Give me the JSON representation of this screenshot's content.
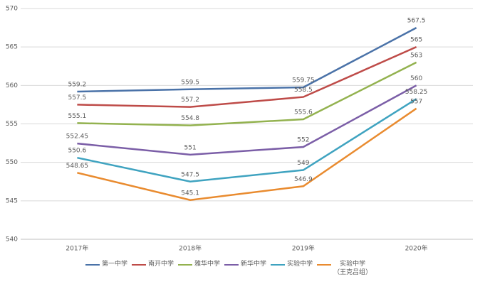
{
  "chart_data": {
    "type": "line",
    "categories": [
      "2017年",
      "2018年",
      "2019年",
      "2020年"
    ],
    "series": [
      {
        "name": "第一中学",
        "color": "#4a72a8",
        "values": [
          559.2,
          559.5,
          559.75,
          567.5
        ]
      },
      {
        "name": "南开中学",
        "color": "#be4b48",
        "values": [
          557.5,
          557.2,
          558.5,
          565
        ]
      },
      {
        "name": "雅华中学",
        "color": "#93b24f",
        "values": [
          555.1,
          554.8,
          555.6,
          563
        ]
      },
      {
        "name": "新华中学",
        "color": "#7b5ea7",
        "values": [
          552.45,
          551,
          552,
          560
        ]
      },
      {
        "name": "实验中学",
        "color": "#3fa3c0",
        "values": [
          550.6,
          547.5,
          549,
          558.25
        ]
      },
      {
        "name": "实验中学\n（王克吕组）",
        "color": "#e98b2f",
        "values": [
          548.65,
          545.1,
          546.9,
          557
        ]
      }
    ],
    "ylim": [
      540,
      570
    ],
    "yticks": [
      540,
      545,
      550,
      555,
      560,
      565,
      570
    ],
    "grid": true
  }
}
